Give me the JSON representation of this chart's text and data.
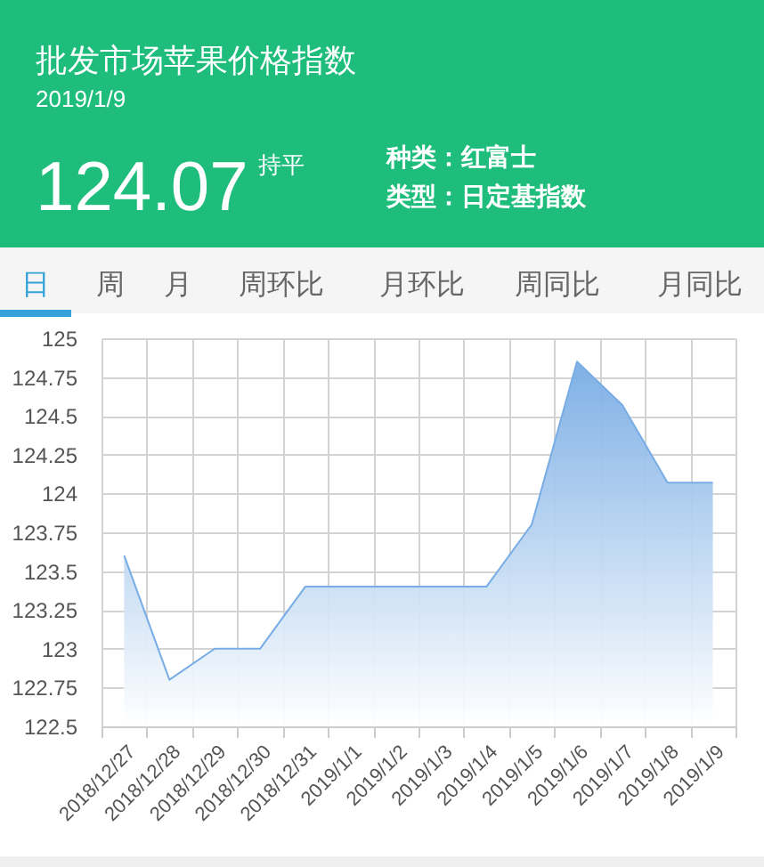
{
  "chart_data": {
    "type": "area",
    "title": "批发市场苹果价格指数",
    "subtitle": "2019/1/9",
    "annotations": [
      "124.07",
      "持平",
      "种类：红富士",
      "类型：日定基指数",
      "日",
      "周",
      "月",
      "周环比",
      "月环比",
      "周同比",
      "月同比"
    ],
    "categories": [
      "2018/12/27",
      "2018/12/28",
      "2018/12/29",
      "2018/12/30",
      "2018/12/31",
      "2019/1/1",
      "2019/1/2",
      "2019/1/3",
      "2019/1/4",
      "2019/1/5",
      "2019/1/6",
      "2019/1/7",
      "2019/1/8",
      "2019/1/9"
    ],
    "series": [
      {
        "color": "#78ace4",
        "values": [
          123.6,
          122.8,
          123.0,
          123.0,
          123.4,
          123.4,
          123.4,
          123.4,
          123.4,
          123.8,
          124.85,
          124.57,
          124.07,
          124.07
        ]
      }
    ],
    "ylim": [
      122.5,
      125
    ],
    "yticks": [
      122.5,
      122.75,
      123,
      123.25,
      123.5,
      123.75,
      124,
      124.25,
      124.5,
      124.75,
      125
    ],
    "grid": true
  }
}
